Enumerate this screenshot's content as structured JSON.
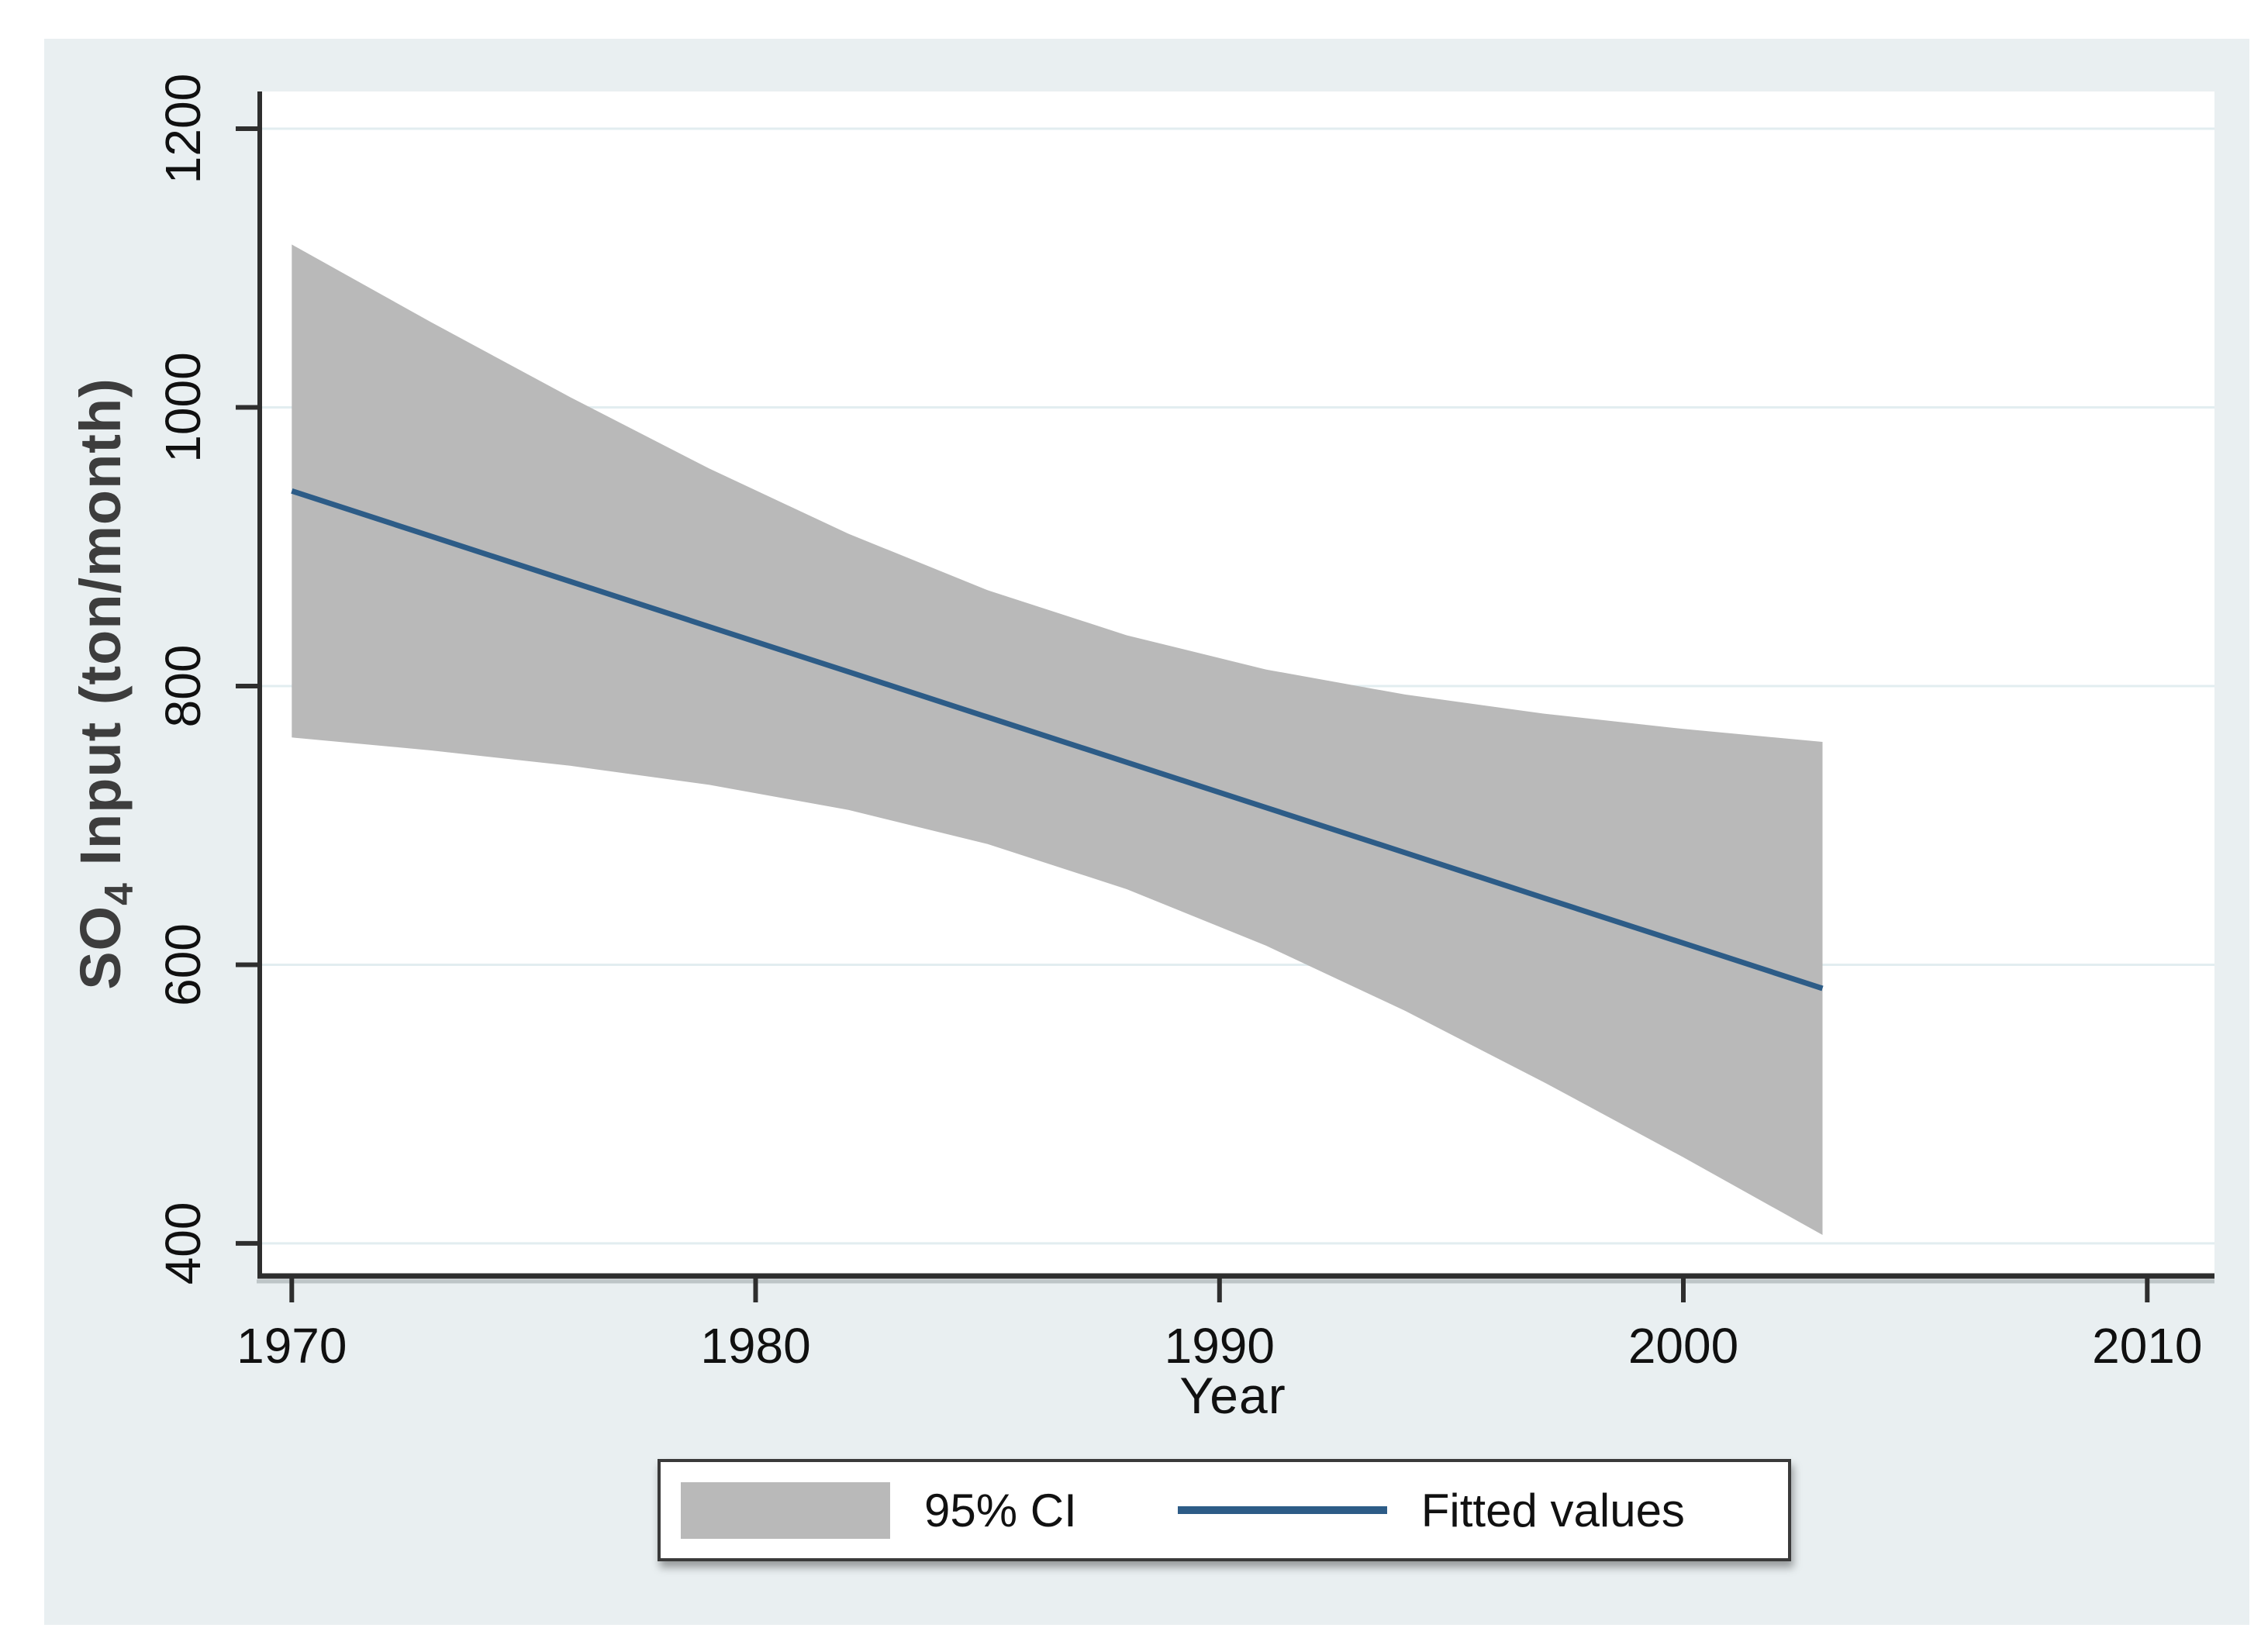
{
  "figure": {
    "bg_color": "#e9eff1",
    "plot_bg": "#ffffff"
  },
  "colors": {
    "ci_band": "#b9b9b9",
    "fit_line": "#2d5c87",
    "gridline": "#e2edf0",
    "axis": "#2e2e2e",
    "tick_text": "#101010",
    "y_title": "#3d3d3d"
  },
  "y_axis": {
    "title_prefix": "SO",
    "title_sub": "4",
    "title_suffix": " Input (ton/month)",
    "ticks": [
      {
        "value": 400,
        "label": "400"
      },
      {
        "value": 600,
        "label": "600"
      },
      {
        "value": 800,
        "label": "800"
      },
      {
        "value": 1000,
        "label": "1000"
      },
      {
        "value": 1200,
        "label": "1200"
      }
    ]
  },
  "x_axis": {
    "title": "Year",
    "ticks": [
      {
        "value": 1970,
        "label": "1970"
      },
      {
        "value": 1980,
        "label": "1980"
      },
      {
        "value": 1990,
        "label": "1990"
      },
      {
        "value": 2000,
        "label": "2000"
      },
      {
        "value": 2010,
        "label": "2010"
      }
    ]
  },
  "legend": {
    "items": [
      {
        "type": "swatch",
        "label": "95% CI"
      },
      {
        "type": "line",
        "label": "Fitted values"
      }
    ]
  },
  "chart_data": {
    "type": "area",
    "subtype": "linear-regression-fit-with-confidence-band",
    "title": "",
    "xlabel": "Year",
    "ylabel": "SO4 Input (ton/month)",
    "x": [
      1970,
      1973,
      1976,
      1979,
      1982,
      1985,
      1988,
      1991,
      1994,
      1997,
      2000,
      2003
    ],
    "series": [
      {
        "name": "Fitted values",
        "style": "line",
        "values": [
          940.0,
          907.5,
          875.1,
          842.6,
          810.2,
          777.7,
          745.3,
          712.8,
          680.4,
          647.9,
          615.5,
          583.0
        ]
      },
      {
        "name": "95% CI upper",
        "style": "band-upper",
        "values": [
          1116.9,
          1061.2,
          1007.4,
          956.1,
          909.3,
          868.8,
          836.4,
          811.9,
          793.9,
          780.2,
          769.2,
          759.9
        ]
      },
      {
        "name": "95% CI lower",
        "style": "band-lower",
        "values": [
          763.1,
          753.8,
          742.8,
          729.1,
          711.1,
          686.6,
          654.2,
          613.7,
          566.9,
          515.6,
          461.8,
          406.1
        ]
      }
    ],
    "x_ticks": [
      1970,
      1980,
      1990,
      2000,
      2010
    ],
    "y_ticks": [
      400,
      600,
      800,
      1000,
      1200
    ],
    "xlim": [
      1969.31,
      2011.45
    ],
    "ylim": [
      376.6,
      1226.7
    ],
    "grid": "horizontal-only",
    "legend_position": "bottom-center",
    "fit_slope_per_year": -10.8,
    "fit_1970": 940,
    "fit_2003": 583
  }
}
